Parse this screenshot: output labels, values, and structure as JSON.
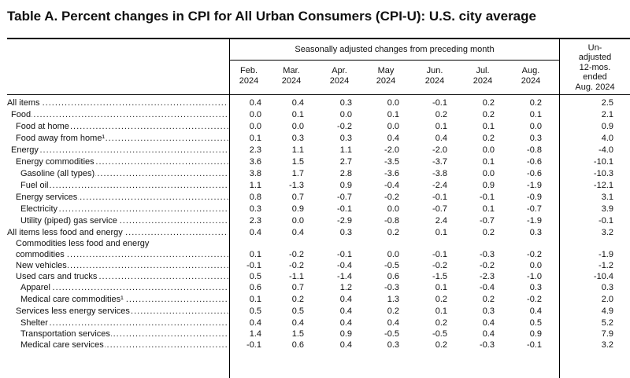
{
  "title": "Table A. Percent changes in CPI for All Urban Consumers (CPI-U): U.S. city average",
  "header": {
    "span_label": "Seasonally adjusted changes from preceding month",
    "columns": [
      "Feb.\n2024",
      "Mar.\n2024",
      "Apr.\n2024",
      "May\n2024",
      "Jun.\n2024",
      "Jul.\n2024",
      "Aug.\n2024"
    ],
    "unadjusted": "Un-\nadjusted\n12-mos.\nended\nAug. 2024"
  },
  "rows": [
    {
      "label": "All items",
      "values": [
        "0.4",
        "0.4",
        "0.3",
        "0.0",
        "-0.1",
        "0.2",
        "0.2",
        "2.5"
      ]
    },
    {
      "label": "Food",
      "values": [
        "0.0",
        "0.1",
        "0.0",
        "0.1",
        "0.2",
        "0.2",
        "0.1",
        "2.1"
      ]
    },
    {
      "label": "Food at home",
      "values": [
        "0.0",
        "0.0",
        "-0.2",
        "0.0",
        "0.1",
        "0.1",
        "0.0",
        "0.9"
      ]
    },
    {
      "label": "Food away from home¹",
      "values": [
        "0.1",
        "0.3",
        "0.3",
        "0.4",
        "0.4",
        "0.2",
        "0.3",
        "4.0"
      ]
    },
    {
      "label": "Energy",
      "values": [
        "2.3",
        "1.1",
        "1.1",
        "-2.0",
        "-2.0",
        "0.0",
        "-0.8",
        "-4.0"
      ]
    },
    {
      "label": "Energy commodities",
      "values": [
        "3.6",
        "1.5",
        "2.7",
        "-3.5",
        "-3.7",
        "0.1",
        "-0.6",
        "-10.1"
      ]
    },
    {
      "label": "Gasoline (all types)",
      "values": [
        "3.8",
        "1.7",
        "2.8",
        "-3.6",
        "-3.8",
        "0.0",
        "-0.6",
        "-10.3"
      ]
    },
    {
      "label": "Fuel oil",
      "values": [
        "1.1",
        "-1.3",
        "0.9",
        "-0.4",
        "-2.4",
        "0.9",
        "-1.9",
        "-12.1"
      ]
    },
    {
      "label": "Energy services",
      "values": [
        "0.8",
        "0.7",
        "-0.7",
        "-0.2",
        "-0.1",
        "-0.1",
        "-0.9",
        "3.1"
      ]
    },
    {
      "label": "Electricity",
      "values": [
        "0.3",
        "0.9",
        "-0.1",
        "0.0",
        "-0.7",
        "0.1",
        "-0.7",
        "3.9"
      ]
    },
    {
      "label": "Utility (piped) gas service",
      "values": [
        "2.3",
        "0.0",
        "-2.9",
        "-0.8",
        "2.4",
        "-0.7",
        "-1.9",
        "-0.1"
      ]
    },
    {
      "label": "All items less food and energy",
      "values": [
        "0.4",
        "0.4",
        "0.3",
        "0.2",
        "0.1",
        "0.2",
        "0.3",
        "3.2"
      ]
    },
    {
      "label": "Commodities less food and energy",
      "label2": "commodities",
      "values": [
        "0.1",
        "-0.2",
        "-0.1",
        "0.0",
        "-0.1",
        "-0.3",
        "-0.2",
        "-1.9"
      ]
    },
    {
      "label": "New vehicles",
      "values": [
        "-0.1",
        "-0.2",
        "-0.4",
        "-0.5",
        "-0.2",
        "-0.2",
        "0.0",
        "-1.2"
      ]
    },
    {
      "label": "Used cars and trucks",
      "values": [
        "0.5",
        "-1.1",
        "-1.4",
        "0.6",
        "-1.5",
        "-2.3",
        "-1.0",
        "-10.4"
      ]
    },
    {
      "label": "Apparel",
      "values": [
        "0.6",
        "0.7",
        "1.2",
        "-0.3",
        "0.1",
        "-0.4",
        "0.3",
        "0.3"
      ]
    },
    {
      "label": "Medical care commodities¹",
      "values": [
        "0.1",
        "0.2",
        "0.4",
        "1.3",
        "0.2",
        "0.2",
        "-0.2",
        "2.0"
      ]
    },
    {
      "label": "Services less energy services",
      "values": [
        "0.5",
        "0.5",
        "0.4",
        "0.2",
        "0.1",
        "0.3",
        "0.4",
        "4.9"
      ]
    },
    {
      "label": "Shelter",
      "values": [
        "0.4",
        "0.4",
        "0.4",
        "0.4",
        "0.2",
        "0.4",
        "0.5",
        "5.2"
      ]
    },
    {
      "label": "Transportation services",
      "values": [
        "1.4",
        "1.5",
        "0.9",
        "-0.5",
        "-0.5",
        "0.4",
        "0.9",
        "7.9"
      ]
    },
    {
      "label": "Medical care services",
      "values": [
        "-0.1",
        "0.6",
        "0.4",
        "0.3",
        "0.2",
        "-0.3",
        "-0.1",
        "3.2"
      ]
    }
  ]
}
